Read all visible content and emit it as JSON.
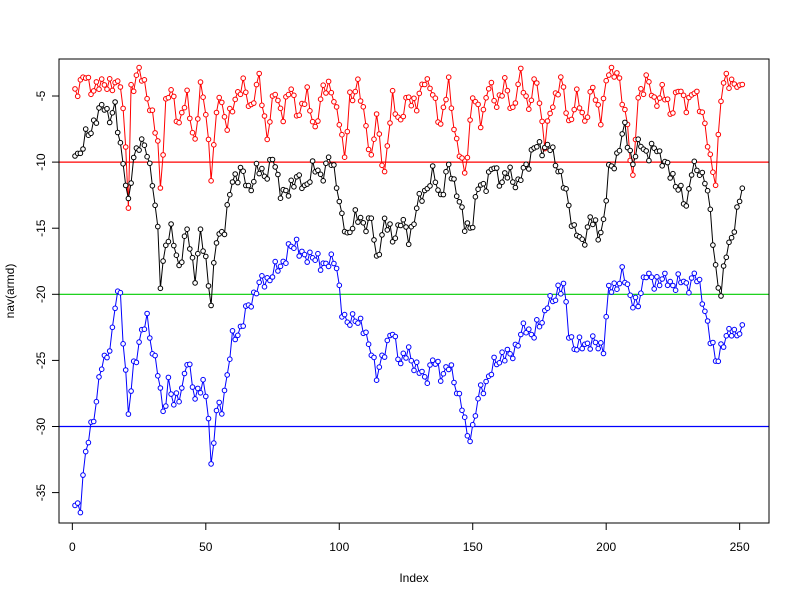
{
  "chart_data": {
    "type": "line",
    "title": "",
    "xlabel": "Index",
    "ylabel": "nav(armd)",
    "xlim": [
      -5,
      261
    ],
    "ylim": [
      -37.3,
      -2.2
    ],
    "xticks": [
      0,
      50,
      100,
      150,
      200,
      250
    ],
    "yticks": [
      -35,
      -30,
      -25,
      -20,
      -15,
      -10,
      -5
    ],
    "grid": false,
    "legend": "none",
    "marker": "open-circle",
    "hlines": [
      {
        "y": -10,
        "color": "#ff0000"
      },
      {
        "y": -20,
        "color": "#00cc00"
      },
      {
        "y": -30,
        "color": "#0000ff"
      }
    ],
    "series": [
      {
        "color": "#ff0000",
        "key": [
          [
            1,
            -4.5
          ],
          [
            3,
            -4.2
          ],
          [
            5,
            -3.5
          ],
          [
            8,
            -4.6
          ],
          [
            10,
            -4.3
          ],
          [
            12,
            -3.8
          ],
          [
            15,
            -4.5
          ],
          [
            18,
            -3.6
          ],
          [
            20,
            -9.0
          ],
          [
            21,
            -13.5
          ],
          [
            22,
            -4.5
          ],
          [
            24,
            -3.4
          ],
          [
            25,
            -3.2
          ],
          [
            28,
            -4.8
          ],
          [
            30,
            -6.5
          ],
          [
            32,
            -8.8
          ],
          [
            33,
            -12.0
          ],
          [
            35,
            -5.5
          ],
          [
            37,
            -4.7
          ],
          [
            40,
            -7.0
          ],
          [
            43,
            -5.2
          ],
          [
            46,
            -8.5
          ],
          [
            48,
            -4.5
          ],
          [
            50,
            -5.8
          ],
          [
            52,
            -11.2
          ],
          [
            55,
            -4.5
          ],
          [
            58,
            -7.5
          ],
          [
            61,
            -5.0
          ],
          [
            64,
            -4.3
          ],
          [
            67,
            -5.8
          ],
          [
            70,
            -3.8
          ],
          [
            73,
            -8.0
          ],
          [
            76,
            -4.6
          ],
          [
            79,
            -6.5
          ],
          [
            82,
            -4.2
          ],
          [
            85,
            -6.8
          ],
          [
            88,
            -4.5
          ],
          [
            91,
            -8.0
          ],
          [
            94,
            -4.0
          ],
          [
            97,
            -4.8
          ],
          [
            100,
            -6.5
          ],
          [
            102,
            -10.0
          ],
          [
            104,
            -5.0
          ],
          [
            107,
            -4.3
          ],
          [
            110,
            -7.0
          ],
          [
            112,
            -10.0
          ],
          [
            114,
            -6.5
          ],
          [
            117,
            -11.0
          ],
          [
            120,
            -5.0
          ],
          [
            123,
            -7.2
          ],
          [
            126,
            -4.8
          ],
          [
            129,
            -6.0
          ],
          [
            132,
            -3.4
          ],
          [
            135,
            -5.0
          ],
          [
            138,
            -7.0
          ],
          [
            141,
            -4.2
          ],
          [
            144,
            -8.5
          ],
          [
            147,
            -11.0
          ],
          [
            150,
            -5.0
          ],
          [
            153,
            -6.8
          ],
          [
            156,
            -4.3
          ],
          [
            159,
            -5.5
          ],
          [
            162,
            -4.2
          ],
          [
            165,
            -6.0
          ],
          [
            168,
            -3.5
          ],
          [
            171,
            -5.8
          ],
          [
            174,
            -3.8
          ],
          [
            177,
            -8.5
          ],
          [
            180,
            -5.5
          ],
          [
            183,
            -3.8
          ],
          [
            186,
            -7.0
          ],
          [
            189,
            -5.2
          ],
          [
            192,
            -6.8
          ],
          [
            195,
            -4.5
          ],
          [
            198,
            -6.5
          ],
          [
            201,
            -3.2
          ],
          [
            204,
            -3.0
          ],
          [
            206,
            -5.5
          ],
          [
            208,
            -7.0
          ],
          [
            210,
            -11.5
          ],
          [
            212,
            -5.2
          ],
          [
            215,
            -3.6
          ],
          [
            218,
            -5.5
          ],
          [
            221,
            -4.6
          ],
          [
            224,
            -6.2
          ],
          [
            227,
            -4.6
          ],
          [
            230,
            -5.5
          ],
          [
            233,
            -4.8
          ],
          [
            236,
            -6.0
          ],
          [
            239,
            -10.0
          ],
          [
            241,
            -11.2
          ],
          [
            243,
            -5.2
          ],
          [
            245,
            -3.6
          ],
          [
            248,
            -4.0
          ],
          [
            250,
            -4.8
          ],
          [
            251,
            -3.6
          ]
        ]
      },
      {
        "color": "#000000",
        "key": [
          [
            1,
            -9.0
          ],
          [
            3,
            -9.4
          ],
          [
            5,
            -8.2
          ],
          [
            8,
            -7.0
          ],
          [
            10,
            -6.4
          ],
          [
            12,
            -5.5
          ],
          [
            14,
            -6.7
          ],
          [
            16,
            -6.1
          ],
          [
            18,
            -8.5
          ],
          [
            20,
            -11.5
          ],
          [
            21,
            -13.5
          ],
          [
            23,
            -9.4
          ],
          [
            25,
            -8.6
          ],
          [
            28,
            -9.2
          ],
          [
            30,
            -11.3
          ],
          [
            32,
            -15.5
          ],
          [
            33,
            -19.2
          ],
          [
            35,
            -16.0
          ],
          [
            37,
            -15.4
          ],
          [
            40,
            -17.8
          ],
          [
            43,
            -15.3
          ],
          [
            46,
            -18.5
          ],
          [
            48,
            -15.6
          ],
          [
            50,
            -17.4
          ],
          [
            52,
            -20.5
          ],
          [
            54,
            -16.0
          ],
          [
            57,
            -14.8
          ],
          [
            60,
            -11.5
          ],
          [
            63,
            -10.5
          ],
          [
            66,
            -12.2
          ],
          [
            69,
            -10.6
          ],
          [
            72,
            -11.0
          ],
          [
            75,
            -9.8
          ],
          [
            78,
            -12.0
          ],
          [
            81,
            -12.5
          ],
          [
            84,
            -10.8
          ],
          [
            87,
            -12.3
          ],
          [
            90,
            -10.2
          ],
          [
            93,
            -11.3
          ],
          [
            96,
            -9.6
          ],
          [
            99,
            -11.5
          ],
          [
            101,
            -14.0
          ],
          [
            103,
            -16.0
          ],
          [
            106,
            -13.8
          ],
          [
            109,
            -15.0
          ],
          [
            112,
            -14.0
          ],
          [
            114,
            -17.8
          ],
          [
            117,
            -14.2
          ],
          [
            120,
            -16.0
          ],
          [
            123,
            -14.3
          ],
          [
            126,
            -15.8
          ],
          [
            129,
            -13.5
          ],
          [
            132,
            -12.2
          ],
          [
            135,
            -11.0
          ],
          [
            138,
            -12.5
          ],
          [
            141,
            -10.5
          ],
          [
            144,
            -12.0
          ],
          [
            147,
            -15.0
          ],
          [
            150,
            -14.5
          ],
          [
            152,
            -12.0
          ],
          [
            155,
            -11.5
          ],
          [
            158,
            -10.4
          ],
          [
            161,
            -11.5
          ],
          [
            164,
            -10.8
          ],
          [
            167,
            -11.8
          ],
          [
            170,
            -10.2
          ],
          [
            173,
            -9.0
          ],
          [
            176,
            -8.8
          ],
          [
            179,
            -9.0
          ],
          [
            182,
            -10.3
          ],
          [
            185,
            -12.5
          ],
          [
            188,
            -15.0
          ],
          [
            191,
            -16.3
          ],
          [
            194,
            -14.2
          ],
          [
            197,
            -15.5
          ],
          [
            199,
            -14.5
          ],
          [
            201,
            -10.8
          ],
          [
            204,
            -9.5
          ],
          [
            207,
            -7.5
          ],
          [
            210,
            -10.0
          ],
          [
            213,
            -8.5
          ],
          [
            216,
            -9.5
          ],
          [
            219,
            -8.8
          ],
          [
            222,
            -10.3
          ],
          [
            225,
            -11.0
          ],
          [
            228,
            -12.5
          ],
          [
            230,
            -13.3
          ],
          [
            232,
            -10.5
          ],
          [
            235,
            -10.8
          ],
          [
            237,
            -11.0
          ],
          [
            239,
            -14.0
          ],
          [
            241,
            -18.0
          ],
          [
            243,
            -20.0
          ],
          [
            245,
            -17.0
          ],
          [
            247,
            -15.5
          ],
          [
            249,
            -14.0
          ],
          [
            251,
            -12.0
          ]
        ]
      },
      {
        "color": "#0000ff",
        "key": [
          [
            1,
            -36.0
          ],
          [
            3,
            -35.8
          ],
          [
            5,
            -32.2
          ],
          [
            7,
            -30.0
          ],
          [
            9,
            -28.0
          ],
          [
            11,
            -25.5
          ],
          [
            13,
            -24.5
          ],
          [
            15,
            -23.0
          ],
          [
            16,
            -21.0
          ],
          [
            17,
            -20.0
          ],
          [
            18,
            -20.0
          ],
          [
            20,
            -26.0
          ],
          [
            21,
            -29.2
          ],
          [
            23,
            -25.5
          ],
          [
            25,
            -23.5
          ],
          [
            28,
            -22.0
          ],
          [
            30,
            -24.0
          ],
          [
            32,
            -26.0
          ],
          [
            34,
            -29.0
          ],
          [
            36,
            -26.5
          ],
          [
            38,
            -28.5
          ],
          [
            41,
            -27.0
          ],
          [
            43,
            -25.2
          ],
          [
            46,
            -27.5
          ],
          [
            49,
            -27.0
          ],
          [
            51,
            -28.8
          ],
          [
            52,
            -33.0
          ],
          [
            54,
            -29.0
          ],
          [
            56,
            -28.5
          ],
          [
            58,
            -26.0
          ],
          [
            60,
            -23.5
          ],
          [
            63,
            -22.5
          ],
          [
            66,
            -21.0
          ],
          [
            69,
            -19.5
          ],
          [
            72,
            -19.0
          ],
          [
            75,
            -18.5
          ],
          [
            78,
            -17.8
          ],
          [
            81,
            -16.8
          ],
          [
            84,
            -16.0
          ],
          [
            87,
            -17.5
          ],
          [
            90,
            -16.8
          ],
          [
            93,
            -18.0
          ],
          [
            96,
            -17.3
          ],
          [
            99,
            -18.0
          ],
          [
            101,
            -21.0
          ],
          [
            103,
            -22.5
          ],
          [
            106,
            -21.5
          ],
          [
            109,
            -22.8
          ],
          [
            112,
            -24.0
          ],
          [
            114,
            -26.5
          ],
          [
            117,
            -24.0
          ],
          [
            120,
            -23.0
          ],
          [
            123,
            -25.0
          ],
          [
            126,
            -24.5
          ],
          [
            129,
            -25.5
          ],
          [
            132,
            -26.5
          ],
          [
            135,
            -25.0
          ],
          [
            138,
            -26.0
          ],
          [
            141,
            -25.5
          ],
          [
            144,
            -27.0
          ],
          [
            146,
            -28.5
          ],
          [
            148,
            -31.0
          ],
          [
            150,
            -30.0
          ],
          [
            152,
            -28.0
          ],
          [
            155,
            -26.5
          ],
          [
            158,
            -25.5
          ],
          [
            161,
            -24.5
          ],
          [
            164,
            -24.8
          ],
          [
            167,
            -23.5
          ],
          [
            170,
            -22.5
          ],
          [
            173,
            -23.0
          ],
          [
            176,
            -22.0
          ],
          [
            178,
            -20.5
          ],
          [
            180,
            -20.8
          ],
          [
            182,
            -19.5
          ],
          [
            184,
            -19.3
          ],
          [
            186,
            -23.0
          ],
          [
            188,
            -23.8
          ],
          [
            191,
            -24.0
          ],
          [
            194,
            -23.5
          ],
          [
            197,
            -24.0
          ],
          [
            199,
            -23.8
          ],
          [
            201,
            -19.8
          ],
          [
            203,
            -19.5
          ],
          [
            206,
            -18.5
          ],
          [
            209,
            -20.0
          ],
          [
            212,
            -21.0
          ],
          [
            215,
            -18.0
          ],
          [
            218,
            -19.5
          ],
          [
            221,
            -18.5
          ],
          [
            224,
            -19.5
          ],
          [
            227,
            -18.8
          ],
          [
            230,
            -19.5
          ],
          [
            233,
            -18.5
          ],
          [
            235,
            -19.5
          ],
          [
            237,
            -21.0
          ],
          [
            239,
            -23.5
          ],
          [
            241,
            -25.0
          ],
          [
            243,
            -24.0
          ],
          [
            245,
            -23.5
          ],
          [
            247,
            -22.5
          ],
          [
            249,
            -23.0
          ],
          [
            251,
            -23.0
          ]
        ]
      }
    ]
  }
}
